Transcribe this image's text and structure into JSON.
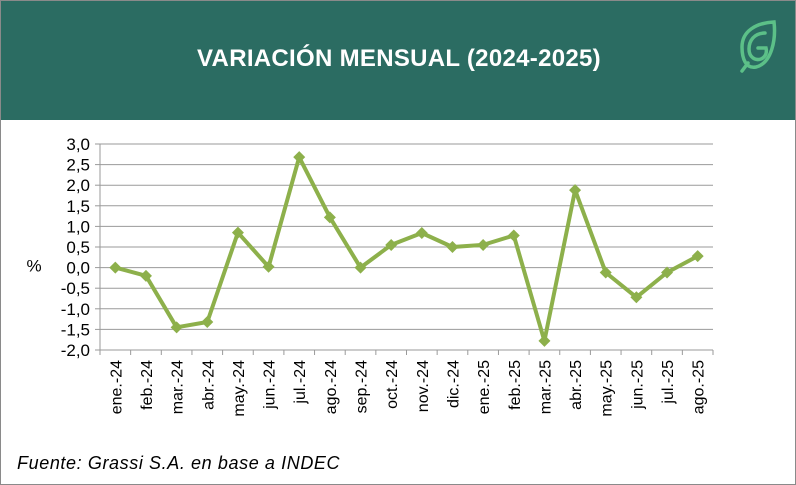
{
  "header": {
    "title": "VARIACIÓN MENSUAL (2024-2025)",
    "background_color": "#2b6c62",
    "logo_icon": "leaf-g-logo-icon"
  },
  "chart_data": {
    "type": "line",
    "title": "VARIACIÓN MENSUAL (2024-2025)",
    "xlabel": "",
    "ylabel": "%",
    "ylim": [
      -2.0,
      3.0
    ],
    "ytick_step": 0.5,
    "ytick_labels": [
      "3,0",
      "2,5",
      "2,0",
      "1,5",
      "1,0",
      "0,5",
      "0,0",
      "-0,5",
      "-1,0",
      "-1,5",
      "-2,0"
    ],
    "grid": true,
    "legend": "none",
    "line_color": "#8db04b",
    "categories": [
      "ene.-24",
      "feb.-24",
      "mar.-24",
      "abr.-24",
      "may.-24",
      "jun.-24",
      "jul.-24",
      "ago.-24",
      "sep.-24",
      "oct.-24",
      "nov.-24",
      "dic.-24",
      "ene.-25",
      "feb.-25",
      "mar.-25",
      "abr.-25",
      "may.-25",
      "jun.-25",
      "jul.-25",
      "ago.-25"
    ],
    "series": [
      {
        "name": "Variación mensual",
        "values": [
          0.0,
          -0.2,
          -1.45,
          -1.32,
          0.85,
          0.02,
          2.68,
          1.22,
          0.0,
          0.55,
          0.84,
          0.5,
          0.55,
          0.78,
          -1.78,
          1.88,
          -0.12,
          -0.72,
          -0.12,
          0.28
        ]
      }
    ]
  },
  "footer": {
    "source": "Fuente: Grassi S.A. en base a INDEC"
  }
}
